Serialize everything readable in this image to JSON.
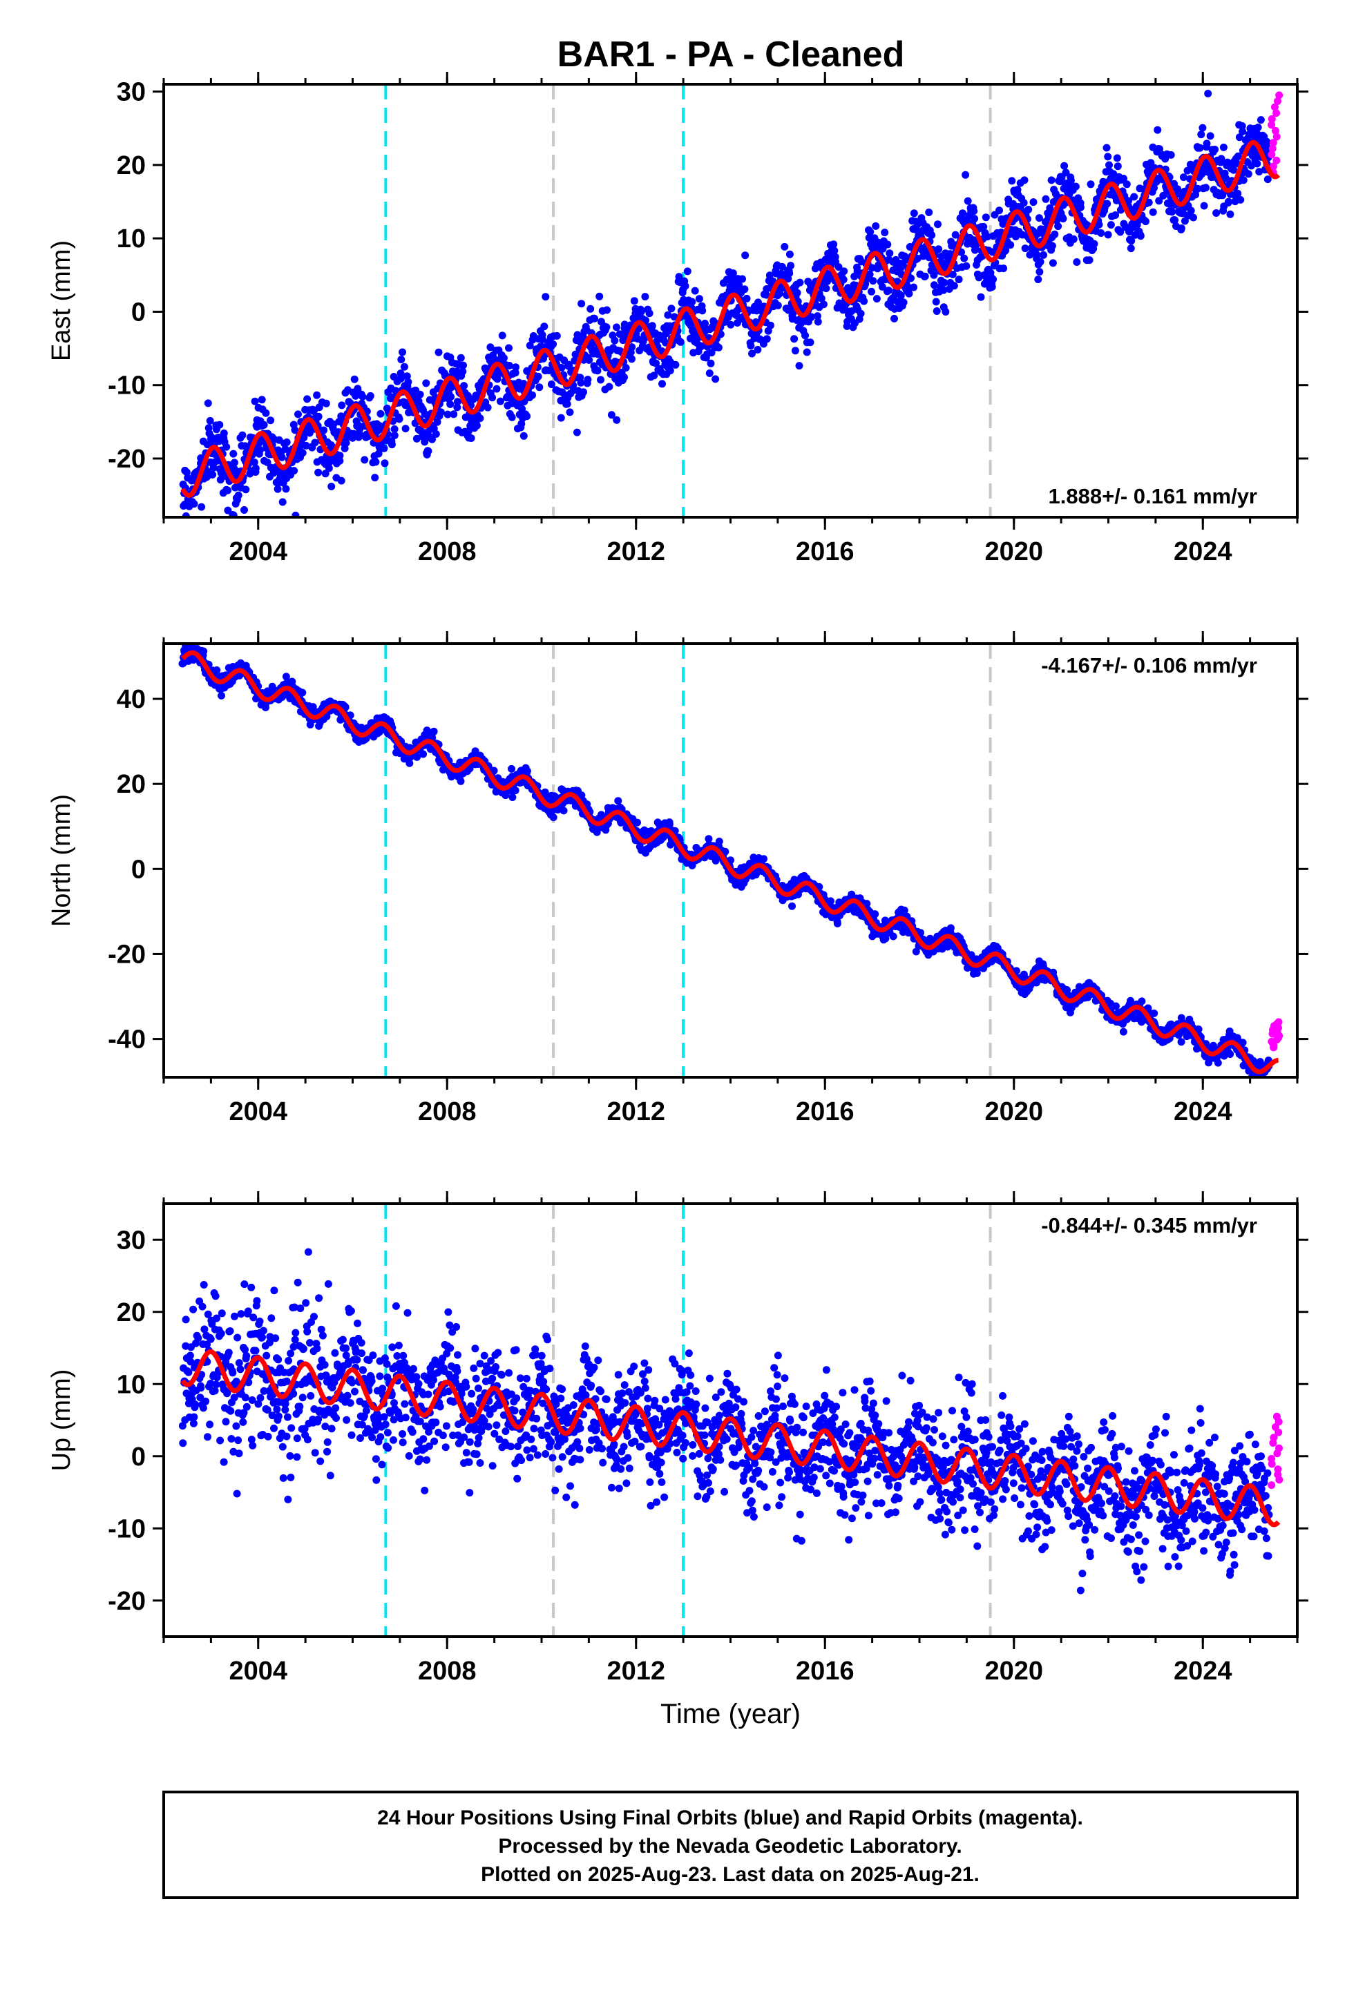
{
  "title": "BAR1  - PA - Cleaned",
  "footer": {
    "line1": "24 Hour Positions Using Final Orbits (blue) and Rapid Orbits (magenta).",
    "line2": "Processed by the Nevada Geodetic Laboratory.",
    "line3": "Plotted on 2025-Aug-23. Last data on 2025-Aug-21."
  },
  "colors": {
    "final_orbits": "#0000ff",
    "rapid_orbits": "#ff00ff",
    "model_fit": "#ff0000",
    "cyan_events": "#00e5ee",
    "gray_events": "#c8c8c8"
  },
  "chart_data": [
    {
      "type": "scatter",
      "component": "east",
      "ylabel": "East (mm)",
      "xlabel": "",
      "xlim": [
        2002.0,
        2026.0
      ],
      "ylim": [
        -28,
        31
      ],
      "xticks": [
        2004,
        2008,
        2012,
        2016,
        2020,
        2024
      ],
      "yticks": [
        -20,
        -10,
        0,
        10,
        20,
        30
      ],
      "rate_label": "1.888+/- 0.161 mm/yr",
      "rate_position": "bottom-right",
      "model": {
        "start": 2002.4,
        "end": 2025.6,
        "intercept_at_start": -22.5,
        "rate_mm_per_yr": 1.888,
        "seasonal_amplitude": 2.8,
        "phase_year": 0.8
      },
      "scatter_sigma": 2.3,
      "rapid": {
        "x_start": 2025.45,
        "x_end": 2025.62,
        "y_min": 19,
        "y_max": 29.5
      },
      "vertical_lines": {
        "cyan": [
          2006.7,
          2013.0
        ],
        "gray": [
          2010.25,
          2019.5
        ]
      }
    },
    {
      "type": "scatter",
      "component": "north",
      "ylabel": "North (mm)",
      "xlabel": "",
      "xlim": [
        2002.0,
        2026.0
      ],
      "ylim": [
        -49,
        53
      ],
      "xticks": [
        2004,
        2008,
        2012,
        2016,
        2020,
        2024
      ],
      "yticks": [
        -40,
        -20,
        0,
        20,
        40
      ],
      "rate_label": "-4.167+/- 0.106 mm/yr",
      "rate_position": "top-right",
      "model": {
        "start": 2002.4,
        "end": 2025.6,
        "intercept_at_start": 49.5,
        "rate_mm_per_yr": -4.167,
        "seasonal_amplitude": 2.3,
        "phase_year": 0.4
      },
      "scatter_sigma": 1.1,
      "rapid": {
        "x_start": 2025.45,
        "x_end": 2025.62,
        "y_min": -42,
        "y_max": -36
      },
      "vertical_lines": {
        "cyan": [
          2006.7,
          2013.0
        ],
        "gray": [
          2010.25,
          2019.5
        ]
      }
    },
    {
      "type": "scatter",
      "component": "up",
      "ylabel": "Up (mm)",
      "xlabel": "Time (year)",
      "xlim": [
        2002.0,
        2026.0
      ],
      "ylim": [
        -25,
        35
      ],
      "xticks": [
        2004,
        2008,
        2012,
        2016,
        2020,
        2024
      ],
      "yticks": [
        -20,
        -10,
        0,
        10,
        20,
        30
      ],
      "rate_label": "-0.844+/- 0.345 mm/yr",
      "rate_position": "top-right",
      "model": {
        "start": 2002.4,
        "end": 2025.6,
        "intercept_at_start": 12.5,
        "rate_mm_per_yr": -0.844,
        "seasonal_amplitude": 2.5,
        "phase_year": 0.75
      },
      "scatter_sigma": 4.0,
      "rapid": {
        "x_start": 2025.45,
        "x_end": 2025.62,
        "y_min": -4,
        "y_max": 5.5
      },
      "vertical_lines": {
        "cyan": [
          2006.7,
          2013.0
        ],
        "gray": [
          2010.25,
          2019.5
        ]
      }
    }
  ]
}
